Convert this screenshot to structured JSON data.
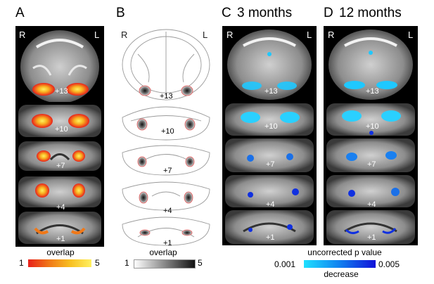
{
  "panels": [
    {
      "letter": "A",
      "title": "",
      "side_right": "R",
      "side_left": "L",
      "legend_title": "overlap",
      "legend_min": "1",
      "legend_max": "5",
      "legend_sub": ""
    },
    {
      "letter": "B",
      "title": "",
      "side_right": "R",
      "side_left": "L",
      "legend_title": "overlap",
      "legend_min": "1",
      "legend_max": "5",
      "legend_sub": ""
    },
    {
      "letter": "C",
      "title": "3 months",
      "side_right": "R",
      "side_left": "L"
    },
    {
      "letter": "D",
      "title": "12 months",
      "side_right": "R",
      "side_left": "L"
    }
  ],
  "slices": [
    "+13",
    "+10",
    "+7",
    "+4",
    "+1"
  ],
  "shared_legend": {
    "title": "uncorrected p value",
    "min": "0.001",
    "max": "0.005",
    "sub": "decrease"
  },
  "colors": {
    "overlap_gradient": [
      "#e8201a",
      "#f07818",
      "#f8c020",
      "#fff060"
    ],
    "gray_gradient": [
      "#ffffff",
      "#888888",
      "#111111"
    ],
    "pvalue_gradient": [
      "#1fe0ff",
      "#1080f0",
      "#1010d8"
    ]
  }
}
